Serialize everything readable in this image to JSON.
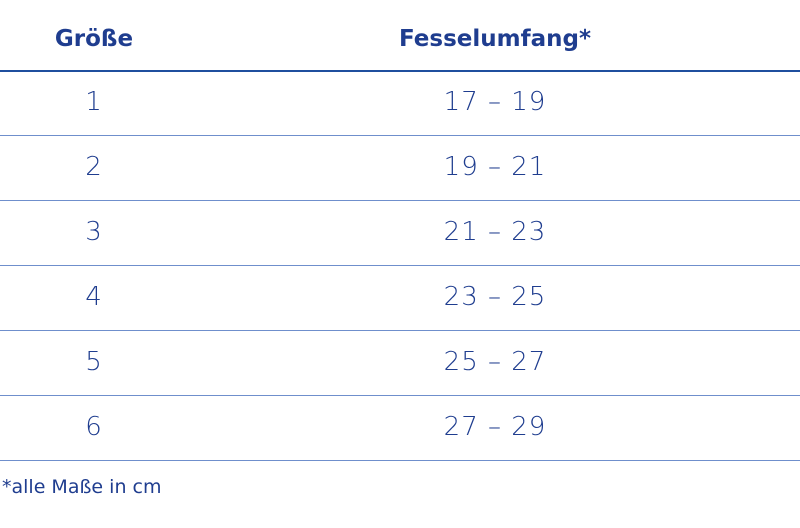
{
  "table": {
    "headers": [
      "Größe",
      "Fesselumfang*"
    ],
    "rows": [
      [
        "1",
        "17 – 19"
      ],
      [
        "2",
        "19 – 21"
      ],
      [
        "3",
        "21 – 23"
      ],
      [
        "4",
        "23 – 25"
      ],
      [
        "5",
        "25 – 27"
      ],
      [
        "6",
        "27 – 29"
      ]
    ]
  },
  "footnote": "*alle Maße in cm",
  "colors": {
    "text": "#1f3d8f",
    "header_rule": "#1f4f9e",
    "row_rule": "#6f8fcc"
  }
}
